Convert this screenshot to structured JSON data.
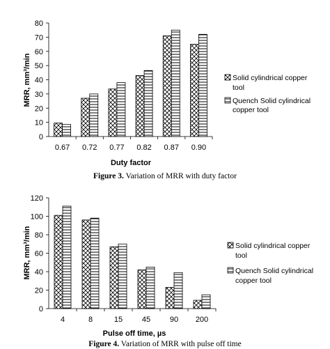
{
  "chart_data": [
    {
      "type": "bar",
      "title": "",
      "caption_label": "Figure 3.",
      "caption_text": " Variation of MRR with duty factor",
      "xlabel": "Duty factor",
      "ylabel": "MRR, mm³/min",
      "ylim": [
        0,
        80
      ],
      "yticks": [
        "0",
        "10",
        "20",
        "30",
        "40",
        "50",
        "60",
        "70",
        "80"
      ],
      "categories": [
        "0.67",
        "0.72",
        "0.77",
        "0.82",
        "0.87",
        "0.90"
      ],
      "series": [
        {
          "name": "Solid cylindrical copper tool",
          "values": [
            9.5,
            27,
            33.5,
            43,
            71,
            65
          ]
        },
        {
          "name": "Quench Solid cylindrical copper tool",
          "values": [
            8.5,
            30,
            38,
            46.5,
            75,
            72
          ]
        }
      ],
      "legend_position": "right",
      "grid": false
    },
    {
      "type": "bar",
      "title": "",
      "caption_label": "Figure 4.",
      "caption_text": " Variation of MRR with pulse off time",
      "xlabel": "Pulse off time, µs",
      "ylabel": "MRR, mm³/min",
      "ylim": [
        0,
        120
      ],
      "yticks": [
        "0",
        "20",
        "40",
        "60",
        "80",
        "100",
        "120"
      ],
      "categories": [
        "4",
        "8",
        "15",
        "45",
        "90",
        "200"
      ],
      "series": [
        {
          "name": "Solid cylindrical copper tool",
          "values": [
            101,
            96,
            67,
            42,
            23,
            9
          ]
        },
        {
          "name": "Quench Solid cylindrical copper tool",
          "values": [
            111,
            98,
            70,
            45,
            39,
            15
          ]
        }
      ],
      "legend_position": "right",
      "grid": false
    }
  ]
}
